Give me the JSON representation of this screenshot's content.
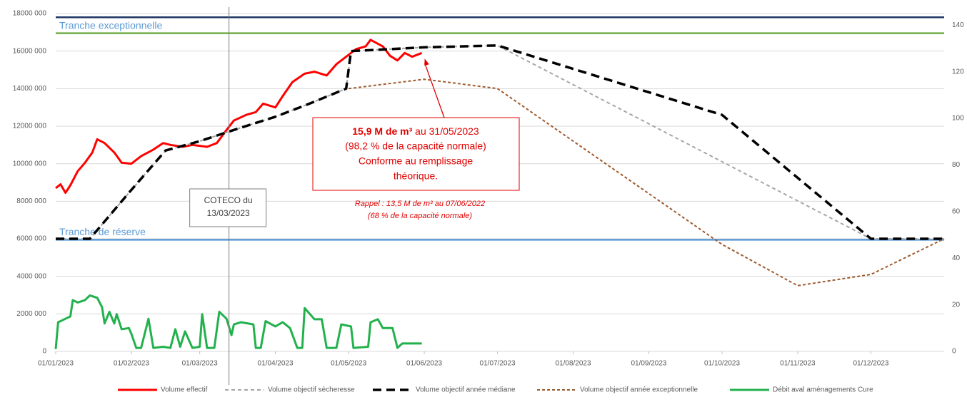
{
  "chart_data": {
    "type": "line",
    "xlim": [
      "2023-01-01",
      "2023-12-31"
    ],
    "xticks": [
      {
        "value": "2023-01-01",
        "label": "01/01/2023"
      },
      {
        "value": "2023-02-01",
        "label": "01/02/2023"
      },
      {
        "value": "2023-03-01",
        "label": "01/03/2023"
      },
      {
        "value": "2023-04-01",
        "label": "01/04/2023"
      },
      {
        "value": "2023-05-01",
        "label": "01/05/2023"
      },
      {
        "value": "2023-06-01",
        "label": "01/06/2023"
      },
      {
        "value": "2023-07-01",
        "label": "01/07/2023"
      },
      {
        "value": "2023-08-01",
        "label": "01/08/2023"
      },
      {
        "value": "2023-09-01",
        "label": "01/09/2023"
      },
      {
        "value": "2023-10-01",
        "label": "01/10/2023"
      },
      {
        "value": "2023-11-01",
        "label": "01/11/2023"
      },
      {
        "value": "2023-12-01",
        "label": "01/12/2023"
      }
    ],
    "ylim": [
      0,
      18000000
    ],
    "yticks": [
      0,
      {
        "value": 2000000,
        "label": "2000 000"
      },
      {
        "value": 4000000,
        "label": "4000 000"
      },
      {
        "value": 6000000,
        "label": "6000 000"
      },
      {
        "value": 8000000,
        "label": "8000 000"
      },
      {
        "value": 10000000,
        "label": "10000 000"
      },
      {
        "value": 12000000,
        "label": "12000 000"
      },
      {
        "value": 14000000,
        "label": "14000 000"
      },
      {
        "value": 16000000,
        "label": "16000 000"
      },
      {
        "value": 18000000,
        "label": "18000 000"
      }
    ],
    "y2lim": [
      0,
      145
    ],
    "y2ticks": [
      0,
      20,
      40,
      60,
      80,
      100,
      120,
      140
    ],
    "grid": true,
    "legend": "bottom",
    "series": [
      {
        "name": "Volume effectif",
        "color": "#ff0000",
        "style": "solid",
        "x": [
          "2023-01-01",
          "2023-01-03",
          "2023-01-05",
          "2023-01-07",
          "2023-01-10",
          "2023-01-13",
          "2023-01-16",
          "2023-01-18",
          "2023-01-21",
          "2023-01-25",
          "2023-01-28",
          "2023-02-01",
          "2023-02-05",
          "2023-02-10",
          "2023-02-14",
          "2023-02-17",
          "2023-02-22",
          "2023-02-26",
          "2023-03-04",
          "2023-03-08",
          "2023-03-12",
          "2023-03-15",
          "2023-03-20",
          "2023-03-24",
          "2023-03-27",
          "2023-04-01",
          "2023-04-04",
          "2023-04-08",
          "2023-04-13",
          "2023-04-17",
          "2023-04-22",
          "2023-04-26",
          "2023-04-30",
          "2023-05-04",
          "2023-05-08",
          "2023-05-10",
          "2023-05-15",
          "2023-05-18",
          "2023-05-21",
          "2023-05-24",
          "2023-05-27",
          "2023-05-31"
        ],
        "values": [
          8700000,
          8900000,
          8450000,
          8850000,
          9600000,
          10050000,
          10600000,
          11300000,
          11100000,
          10600000,
          10050000,
          10000000,
          10400000,
          10750000,
          11100000,
          11000000,
          10900000,
          11000000,
          10900000,
          11100000,
          11800000,
          12300000,
          12600000,
          12750000,
          13200000,
          13000000,
          13600000,
          14350000,
          14800000,
          14900000,
          14700000,
          15300000,
          15700000,
          16100000,
          16250000,
          16600000,
          16250000,
          15750000,
          15500000,
          15900000,
          15700000,
          15900000
        ]
      },
      {
        "name": "Volume objectif sècheresse",
        "color": "#a6a6a6",
        "style": "dashed",
        "x": [
          "2023-01-01",
          "2023-01-15",
          "2023-02-01",
          "2023-02-15",
          "2023-03-01",
          "2023-03-15",
          "2023-04-01",
          "2023-04-15",
          "2023-04-30",
          "2023-05-02",
          "2023-06-01",
          "2023-07-01",
          "2023-12-01",
          "2023-12-31"
        ],
        "values": [
          6000000,
          6000000,
          8600000,
          10700000,
          11200000,
          11800000,
          12500000,
          13200000,
          14000000,
          16000000,
          16200000,
          16300000,
          6000000,
          6000000
        ]
      },
      {
        "name": "Volume objectif année médiane",
        "color": "#000000",
        "style": "long-dash",
        "x": [
          "2023-01-01",
          "2023-01-15",
          "2023-02-01",
          "2023-02-15",
          "2023-03-01",
          "2023-03-15",
          "2023-04-01",
          "2023-04-15",
          "2023-04-30",
          "2023-05-02",
          "2023-06-01",
          "2023-07-01",
          "2023-10-01",
          "2023-12-01",
          "2023-12-31"
        ],
        "values": [
          6000000,
          6000000,
          8600000,
          10700000,
          11200000,
          11800000,
          12500000,
          13200000,
          14000000,
          16000000,
          16200000,
          16300000,
          12600000,
          6000000,
          6000000
        ]
      },
      {
        "name": "Volume objectif année exceptionnelle",
        "color": "#9e5a2e",
        "style": "dotted",
        "x": [
          "2023-05-01",
          "2023-06-01",
          "2023-07-01",
          "2023-10-01",
          "2023-11-01",
          "2023-12-01",
          "2023-12-31"
        ],
        "values": [
          14000000,
          14500000,
          14000000,
          5700000,
          3500000,
          4100000,
          6000000
        ]
      },
      {
        "name": "Débit aval aménagements Cure",
        "color": "#22b14c",
        "style": "solid",
        "axis": "y2",
        "x": [
          "2023-01-01",
          "2023-01-02",
          "2023-01-05",
          "2023-01-07",
          "2023-01-08",
          "2023-01-10",
          "2023-01-13",
          "2023-01-15",
          "2023-01-18",
          "2023-01-20",
          "2023-01-21",
          "2023-01-23",
          "2023-01-25",
          "2023-01-26",
          "2023-01-28",
          "2023-01-31",
          "2023-02-01",
          "2023-02-03",
          "2023-02-05",
          "2023-02-08",
          "2023-02-10",
          "2023-02-14",
          "2023-02-17",
          "2023-02-19",
          "2023-02-21",
          "2023-02-23",
          "2023-02-26",
          "2023-03-01",
          "2023-03-02",
          "2023-03-04",
          "2023-03-07",
          "2023-03-09",
          "2023-03-12",
          "2023-03-14",
          "2023-03-15",
          "2023-03-18",
          "2023-03-23",
          "2023-03-24",
          "2023-03-26",
          "2023-03-28",
          "2023-04-01",
          "2023-04-04",
          "2023-04-07",
          "2023-04-10",
          "2023-04-12",
          "2023-04-13",
          "2023-04-17",
          "2023-04-20",
          "2023-04-22",
          "2023-04-26",
          "2023-04-28",
          "2023-05-02",
          "2023-05-03",
          "2023-05-09",
          "2023-05-10",
          "2023-05-13",
          "2023-05-15",
          "2023-05-19",
          "2023-05-21",
          "2023-05-23",
          "2023-05-27",
          "2023-05-31"
        ],
        "values": [
          1,
          12.5,
          14,
          15,
          22,
          21,
          22,
          24,
          23,
          19,
          12,
          17,
          12,
          16,
          9.5,
          10,
          7.6,
          1.5,
          1.5,
          14,
          1.5,
          2,
          1.5,
          9.5,
          2,
          8.6,
          1.5,
          2,
          16,
          1.5,
          1.5,
          17,
          14,
          7,
          11.6,
          12.5,
          11.6,
          1.5,
          1.5,
          13,
          10.7,
          12.5,
          10,
          1.5,
          1.5,
          18.6,
          13.8,
          13.8,
          1.5,
          1.5,
          11.6,
          10.7,
          1.5,
          2,
          12.5,
          13.8,
          10,
          10,
          1.5,
          3.4,
          3.4,
          3.4
        ]
      }
    ],
    "reference_lines": [
      {
        "value": 17800000,
        "color": "#1f3864"
      },
      {
        "value": 16950000,
        "color": "#70ad47",
        "label": "Tranche exceptionnelle"
      },
      {
        "value": 5950000,
        "color": "#5b9bd5",
        "label": "Tranche de réserve"
      }
    ],
    "markers": [
      {
        "x": "2023-03-13",
        "text": [
          "COTECO du",
          "13/03/2023"
        ]
      }
    ],
    "callout": {
      "bold": "15,9 M de m³",
      "text": " au 31/05/2023",
      "lines": [
        "(98,2 % de la capacité normale)",
        "Conforme au remplissage",
        "théorique."
      ],
      "note": [
        "Rappel : 13,5 M de m³ au 07/06/2022",
        "(68 % de la capacité normale)"
      ]
    }
  }
}
